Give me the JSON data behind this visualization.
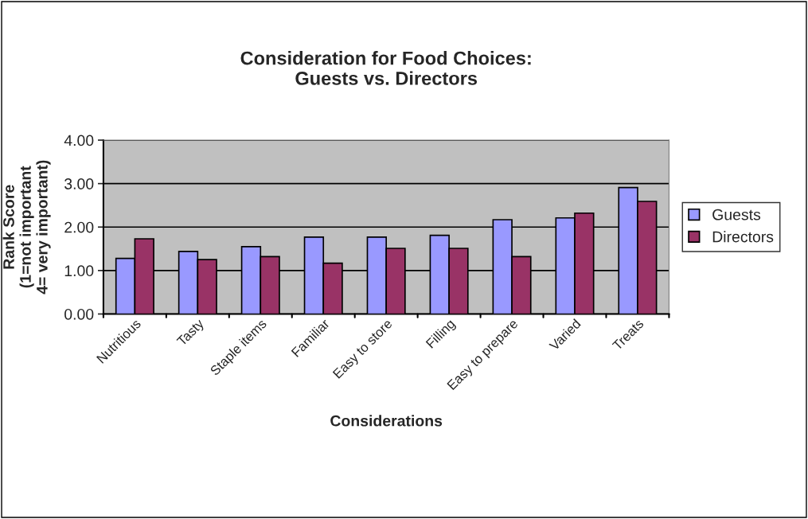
{
  "chart_data": {
    "type": "bar",
    "title": "Consideration for Food Choices:\nGuests vs. Directors",
    "xlabel": "Considerations",
    "ylabel": "Rank Score\n(1=not important\n4= very important)",
    "categories": [
      "Nutritious",
      "Tasty",
      "Staple items",
      "Familiar",
      "Easy to store",
      "Filling",
      "Easy to prepare",
      "Varied",
      "Treats"
    ],
    "series": [
      {
        "name": "Guests",
        "color": "#9999ff",
        "values": [
          1.28,
          1.44,
          1.55,
          1.77,
          1.77,
          1.81,
          2.17,
          2.21,
          2.91
        ]
      },
      {
        "name": "Directors",
        "color": "#993366",
        "values": [
          1.73,
          1.25,
          1.32,
          1.17,
          1.51,
          1.51,
          1.32,
          2.32,
          2.59
        ]
      }
    ],
    "ylim": [
      0,
      4
    ],
    "yticks": [
      {
        "value": 0,
        "label": "0.00"
      },
      {
        "value": 1,
        "label": "1.00"
      },
      {
        "value": 2,
        "label": "2.00"
      },
      {
        "value": 3,
        "label": "3.00"
      },
      {
        "value": 4,
        "label": "4.00"
      }
    ],
    "grid": "y",
    "legend": "right"
  }
}
